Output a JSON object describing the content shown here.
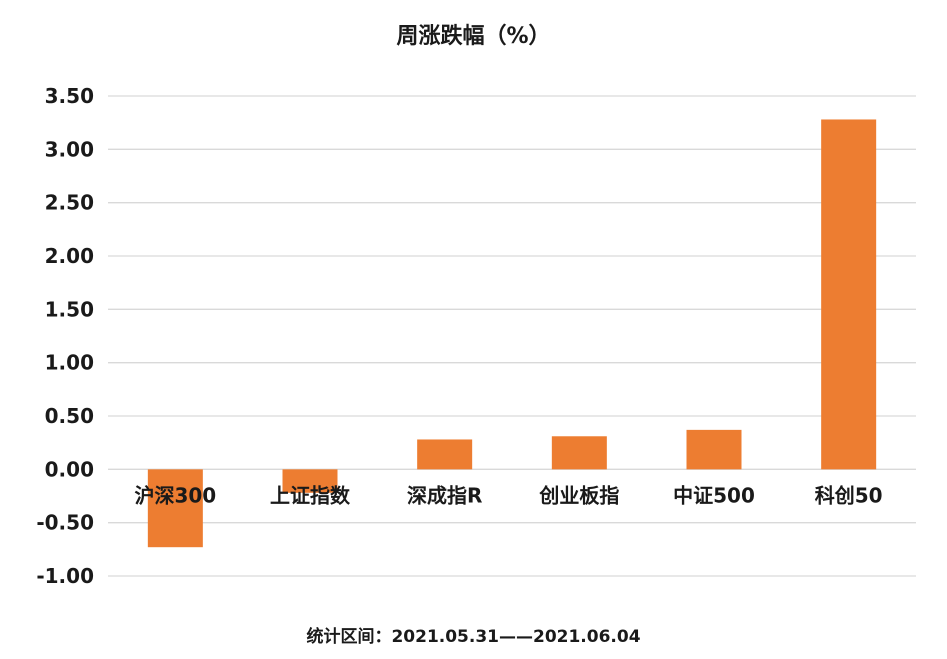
{
  "chart_data": {
    "type": "bar",
    "title": "周涨跌幅（%）",
    "footnote": "统计区间：2021.05.31——2021.06.04",
    "categories": [
      "沪深300",
      "上证指数",
      "深成指R",
      "创业板指",
      "中证500",
      "科创50"
    ],
    "values": [
      -0.73,
      -0.22,
      0.28,
      0.31,
      0.37,
      3.28
    ],
    "ylim": [
      -1.0,
      3.5
    ],
    "yticks": [
      3.5,
      3.0,
      2.5,
      2.0,
      1.5,
      1.0,
      0.5,
      0.0,
      -0.5,
      -1.0
    ],
    "ytick_labels": [
      "3.50",
      "3.00",
      "2.50",
      "2.00",
      "1.50",
      "1.00",
      "0.50",
      "0.00",
      "-0.50",
      "-1.00"
    ],
    "grid": true,
    "bar_color": "#ED7D31",
    "grid_color": "#D9D9D9"
  }
}
